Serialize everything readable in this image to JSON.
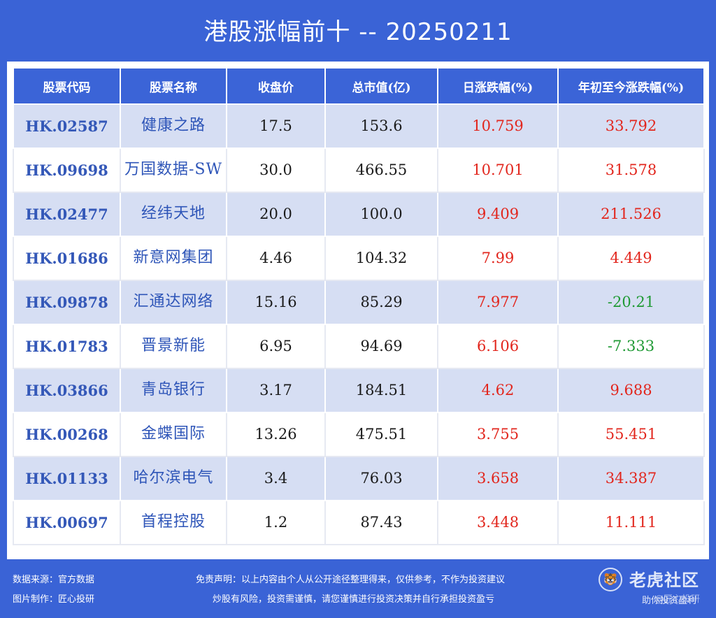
{
  "title": "港股涨幅前十 -- 20250211",
  "headers": [
    "股票代码",
    "股票名称",
    "收盘价",
    "总市值(亿)",
    "日涨跌幅(%)",
    "年初至今涨跌幅(%)"
  ],
  "rows": [
    {
      "code": "HK.02587",
      "name": "健康之路",
      "close": "17.5",
      "cap": "153.6",
      "day": "10.759",
      "ytd": "33.792"
    },
    {
      "code": "HK.09698",
      "name": "万国数据-SW",
      "close": "30.0",
      "cap": "466.55",
      "day": "10.701",
      "ytd": "31.578"
    },
    {
      "code": "HK.02477",
      "name": "经纬天地",
      "close": "20.0",
      "cap": "100.0",
      "day": "9.409",
      "ytd": "211.526"
    },
    {
      "code": "HK.01686",
      "name": "新意网集团",
      "close": "4.46",
      "cap": "104.32",
      "day": "7.99",
      "ytd": "4.449"
    },
    {
      "code": "HK.09878",
      "name": "汇通达网络",
      "close": "15.16",
      "cap": "85.29",
      "day": "7.977",
      "ytd": "-20.21"
    },
    {
      "code": "HK.01783",
      "name": "晋景新能",
      "close": "6.95",
      "cap": "94.69",
      "day": "6.106",
      "ytd": "-7.333"
    },
    {
      "code": "HK.03866",
      "name": "青岛银行",
      "close": "3.17",
      "cap": "184.51",
      "day": "4.62",
      "ytd": "9.688"
    },
    {
      "code": "HK.00268",
      "name": "金蝶国际",
      "close": "13.26",
      "cap": "475.51",
      "day": "3.755",
      "ytd": "55.451"
    },
    {
      "code": "HK.01133",
      "name": "哈尔滨电气",
      "close": "3.4",
      "cap": "76.03",
      "day": "3.658",
      "ytd": "34.387"
    },
    {
      "code": "HK.00697",
      "name": "首程控股",
      "close": "1.2",
      "cap": "87.43",
      "day": "3.448",
      "ytd": "11.111"
    }
  ],
  "footer": {
    "source": "数据来源：官方数据",
    "maker": "图片制作：匠心投研",
    "disclaimer1": "免责声明：以上内容由个人从公开途径整理得来，仅供参考，不作为投资建议",
    "disclaimer2": "炒股有风险，投资需谨慎，请您谨慎进行投资决策并自行承担投资盈亏",
    "logo": "老虎社区",
    "watermark": "@匠心投研",
    "slogan": "助你投资盈利"
  },
  "colors": {
    "background": "#3a63d6",
    "header": "#3b64d7",
    "row_alt": "#d6def3",
    "positive": "#e2261d",
    "negative": "#1f9a34"
  },
  "icons": [
    "tiger-logo-icon"
  ]
}
